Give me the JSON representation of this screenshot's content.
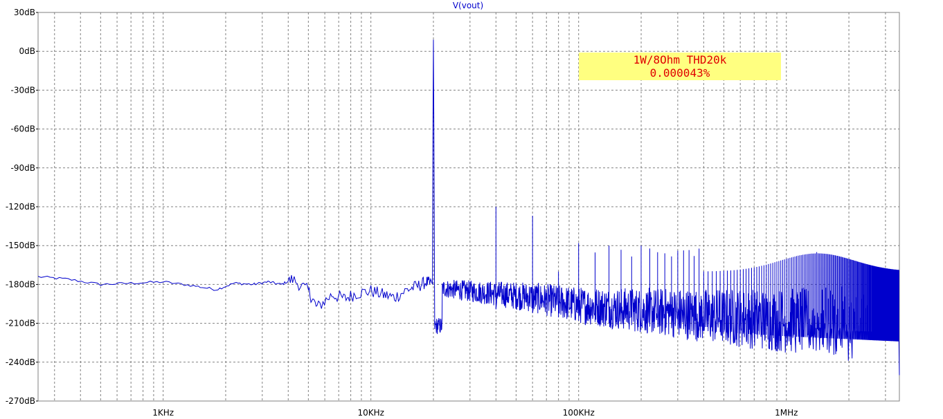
{
  "chart_data": {
    "type": "line",
    "title": "V(vout)",
    "x_scale": "log",
    "xlim": [
      250,
      3500000
    ],
    "ylim": [
      -270,
      30
    ],
    "y_ticks": [
      {
        "value": 30,
        "label": "30dB"
      },
      {
        "value": 0,
        "label": "0dB"
      },
      {
        "value": -30,
        "label": "-30dB"
      },
      {
        "value": -60,
        "label": "-60dB"
      },
      {
        "value": -90,
        "label": "-90dB"
      },
      {
        "value": -120,
        "label": "-120dB"
      },
      {
        "value": -150,
        "label": "-150dB"
      },
      {
        "value": -180,
        "label": "-180dB"
      },
      {
        "value": -210,
        "label": "-210dB"
      },
      {
        "value": -240,
        "label": "-240dB"
      },
      {
        "value": -270,
        "label": "-270dB"
      }
    ],
    "x_ticks": [
      {
        "value": 1000,
        "label": "1KHz"
      },
      {
        "value": 10000,
        "label": "10KHz"
      },
      {
        "value": 100000,
        "label": "100KHz"
      },
      {
        "value": 1000000,
        "label": "1MHz"
      }
    ],
    "grid": true,
    "series": [
      {
        "color": "#0000cc",
        "envelope": [
          [
            250,
            -174
          ],
          [
            350,
            -176
          ],
          [
            500,
            -180
          ],
          [
            700,
            -179
          ],
          [
            1000,
            -178
          ],
          [
            1400,
            -181
          ],
          [
            1800,
            -184
          ],
          [
            2200,
            -179
          ],
          [
            2700,
            -180
          ],
          [
            3200,
            -178
          ],
          [
            3700,
            -180
          ],
          [
            4200,
            -176
          ],
          [
            5000,
            -185
          ],
          [
            5500,
            -198
          ],
          [
            6500,
            -188
          ],
          [
            7500,
            -191
          ],
          [
            8500,
            -187
          ],
          [
            10000,
            -185
          ],
          [
            11500,
            -188
          ],
          [
            13000,
            -190
          ],
          [
            15000,
            -184
          ],
          [
            17000,
            -181
          ],
          [
            18500,
            -178
          ],
          [
            19500,
            -180
          ]
        ],
        "peaks": [
          {
            "x": 20000,
            "y": 9
          },
          {
            "x": 40000,
            "y": -120
          },
          {
            "x": 60000,
            "y": -127
          },
          {
            "x": 100000,
            "y": -148
          },
          {
            "x": 140000,
            "y": -150
          },
          {
            "x": 200000,
            "y": -150
          },
          {
            "x": 1400000,
            "y": -155
          }
        ],
        "noise_floor": [
          [
            22000,
            -183
          ],
          [
            60000,
            -190
          ],
          [
            100000,
            -196
          ],
          [
            200000,
            -200
          ],
          [
            500000,
            -205
          ],
          [
            1000000,
            -208
          ],
          [
            3500000,
            -212
          ]
        ]
      }
    ],
    "annotation": {
      "line1": "1W/8Ohm THD20k",
      "line2": "0.000043%",
      "box_color": "#ffff80",
      "text_color": "#e00000"
    }
  }
}
